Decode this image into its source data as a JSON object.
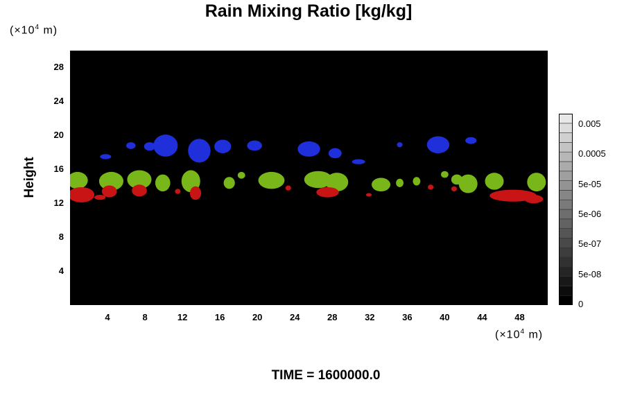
{
  "chart_data": {
    "type": "heatmap",
    "title": "Rain Mixing Ratio [kg/kg]",
    "ylabel": "Height",
    "x_unit": "(×10",
    "x_unit_exp": "4",
    "x_unit_tail": " m)",
    "y_unit": "(×10",
    "y_unit_exp": "4",
    "y_unit_tail": " m)",
    "xlim": [
      0,
      51
    ],
    "ylim": [
      0,
      30
    ],
    "x_ticks": [
      4,
      8,
      12,
      16,
      20,
      24,
      28,
      32,
      36,
      40,
      44,
      48
    ],
    "y_ticks": [
      4,
      8,
      12,
      16,
      20,
      24,
      28
    ],
    "background_color": "#000000",
    "colorbar": {
      "labels": [
        "0.005",
        "0.0005",
        "5e-05",
        "5e-06",
        "5e-07",
        "5e-08",
        "0"
      ],
      "levels": 20,
      "bottom_color": "#000000",
      "top_color": "#e8e8e8"
    },
    "regions": [
      {
        "layer": "blue",
        "color": "#1f2fd9",
        "blobs": [
          {
            "x": 3.8,
            "y": 17.5,
            "rx": 0.6,
            "ry": 0.3
          },
          {
            "x": 6.5,
            "y": 18.8,
            "rx": 0.5,
            "ry": 0.4
          },
          {
            "x": 8.5,
            "y": 18.7,
            "rx": 0.6,
            "ry": 0.5
          },
          {
            "x": 10.2,
            "y": 18.8,
            "rx": 1.3,
            "ry": 1.3
          },
          {
            "x": 13.8,
            "y": 18.2,
            "rx": 1.2,
            "ry": 1.4
          },
          {
            "x": 16.3,
            "y": 18.7,
            "rx": 0.9,
            "ry": 0.8
          },
          {
            "x": 19.7,
            "y": 18.8,
            "rx": 0.8,
            "ry": 0.6
          },
          {
            "x": 25.5,
            "y": 18.4,
            "rx": 1.2,
            "ry": 0.9
          },
          {
            "x": 28.3,
            "y": 17.9,
            "rx": 0.7,
            "ry": 0.6
          },
          {
            "x": 30.8,
            "y": 16.9,
            "rx": 0.7,
            "ry": 0.3
          },
          {
            "x": 35.2,
            "y": 18.9,
            "rx": 0.3,
            "ry": 0.3
          },
          {
            "x": 39.3,
            "y": 18.9,
            "rx": 1.2,
            "ry": 1.0
          },
          {
            "x": 42.8,
            "y": 19.4,
            "rx": 0.6,
            "ry": 0.4
          }
        ]
      },
      {
        "layer": "green",
        "color": "#79b61a",
        "blobs": [
          {
            "x": 0.8,
            "y": 14.7,
            "rx": 1.1,
            "ry": 1.0
          },
          {
            "x": 4.4,
            "y": 14.6,
            "rx": 1.3,
            "ry": 1.1
          },
          {
            "x": 7.4,
            "y": 14.8,
            "rx": 1.3,
            "ry": 1.1
          },
          {
            "x": 9.9,
            "y": 14.4,
            "rx": 0.8,
            "ry": 1.0
          },
          {
            "x": 12.9,
            "y": 14.6,
            "rx": 1.0,
            "ry": 1.3
          },
          {
            "x": 17.0,
            "y": 14.4,
            "rx": 0.6,
            "ry": 0.7
          },
          {
            "x": 18.3,
            "y": 15.3,
            "rx": 0.4,
            "ry": 0.4
          },
          {
            "x": 21.5,
            "y": 14.7,
            "rx": 1.4,
            "ry": 1.0
          },
          {
            "x": 26.5,
            "y": 14.8,
            "rx": 1.5,
            "ry": 1.0
          },
          {
            "x": 28.5,
            "y": 14.5,
            "rx": 1.2,
            "ry": 1.1
          },
          {
            "x": 33.2,
            "y": 14.2,
            "rx": 1.0,
            "ry": 0.8
          },
          {
            "x": 35.2,
            "y": 14.4,
            "rx": 0.4,
            "ry": 0.5
          },
          {
            "x": 37.0,
            "y": 14.6,
            "rx": 0.4,
            "ry": 0.5
          },
          {
            "x": 40.0,
            "y": 15.4,
            "rx": 0.4,
            "ry": 0.4
          },
          {
            "x": 41.3,
            "y": 14.8,
            "rx": 0.6,
            "ry": 0.6
          },
          {
            "x": 42.5,
            "y": 14.3,
            "rx": 1.0,
            "ry": 1.1
          },
          {
            "x": 45.3,
            "y": 14.6,
            "rx": 1.0,
            "ry": 1.0
          },
          {
            "x": 49.8,
            "y": 14.5,
            "rx": 1.0,
            "ry": 1.1
          }
        ]
      },
      {
        "layer": "red",
        "color": "#c81414",
        "blobs": [
          {
            "x": 1.2,
            "y": 13.0,
            "rx": 1.4,
            "ry": 0.9
          },
          {
            "x": 4.2,
            "y": 13.4,
            "rx": 0.8,
            "ry": 0.7
          },
          {
            "x": 3.2,
            "y": 12.7,
            "rx": 0.6,
            "ry": 0.3
          },
          {
            "x": 7.4,
            "y": 13.5,
            "rx": 0.8,
            "ry": 0.7
          },
          {
            "x": 11.5,
            "y": 13.4,
            "rx": 0.3,
            "ry": 0.3
          },
          {
            "x": 13.4,
            "y": 13.2,
            "rx": 0.6,
            "ry": 0.8
          },
          {
            "x": 23.3,
            "y": 13.8,
            "rx": 0.3,
            "ry": 0.3
          },
          {
            "x": 27.5,
            "y": 13.3,
            "rx": 1.2,
            "ry": 0.6
          },
          {
            "x": 31.9,
            "y": 13.0,
            "rx": 0.3,
            "ry": 0.2
          },
          {
            "x": 38.5,
            "y": 13.9,
            "rx": 0.3,
            "ry": 0.3
          },
          {
            "x": 41.0,
            "y": 13.7,
            "rx": 0.3,
            "ry": 0.3
          },
          {
            "x": 47.3,
            "y": 12.9,
            "rx": 2.5,
            "ry": 0.7
          },
          {
            "x": 49.5,
            "y": 12.5,
            "rx": 1.0,
            "ry": 0.5
          }
        ]
      }
    ]
  },
  "footer": {
    "time_label": "TIME = 1600000.0"
  }
}
